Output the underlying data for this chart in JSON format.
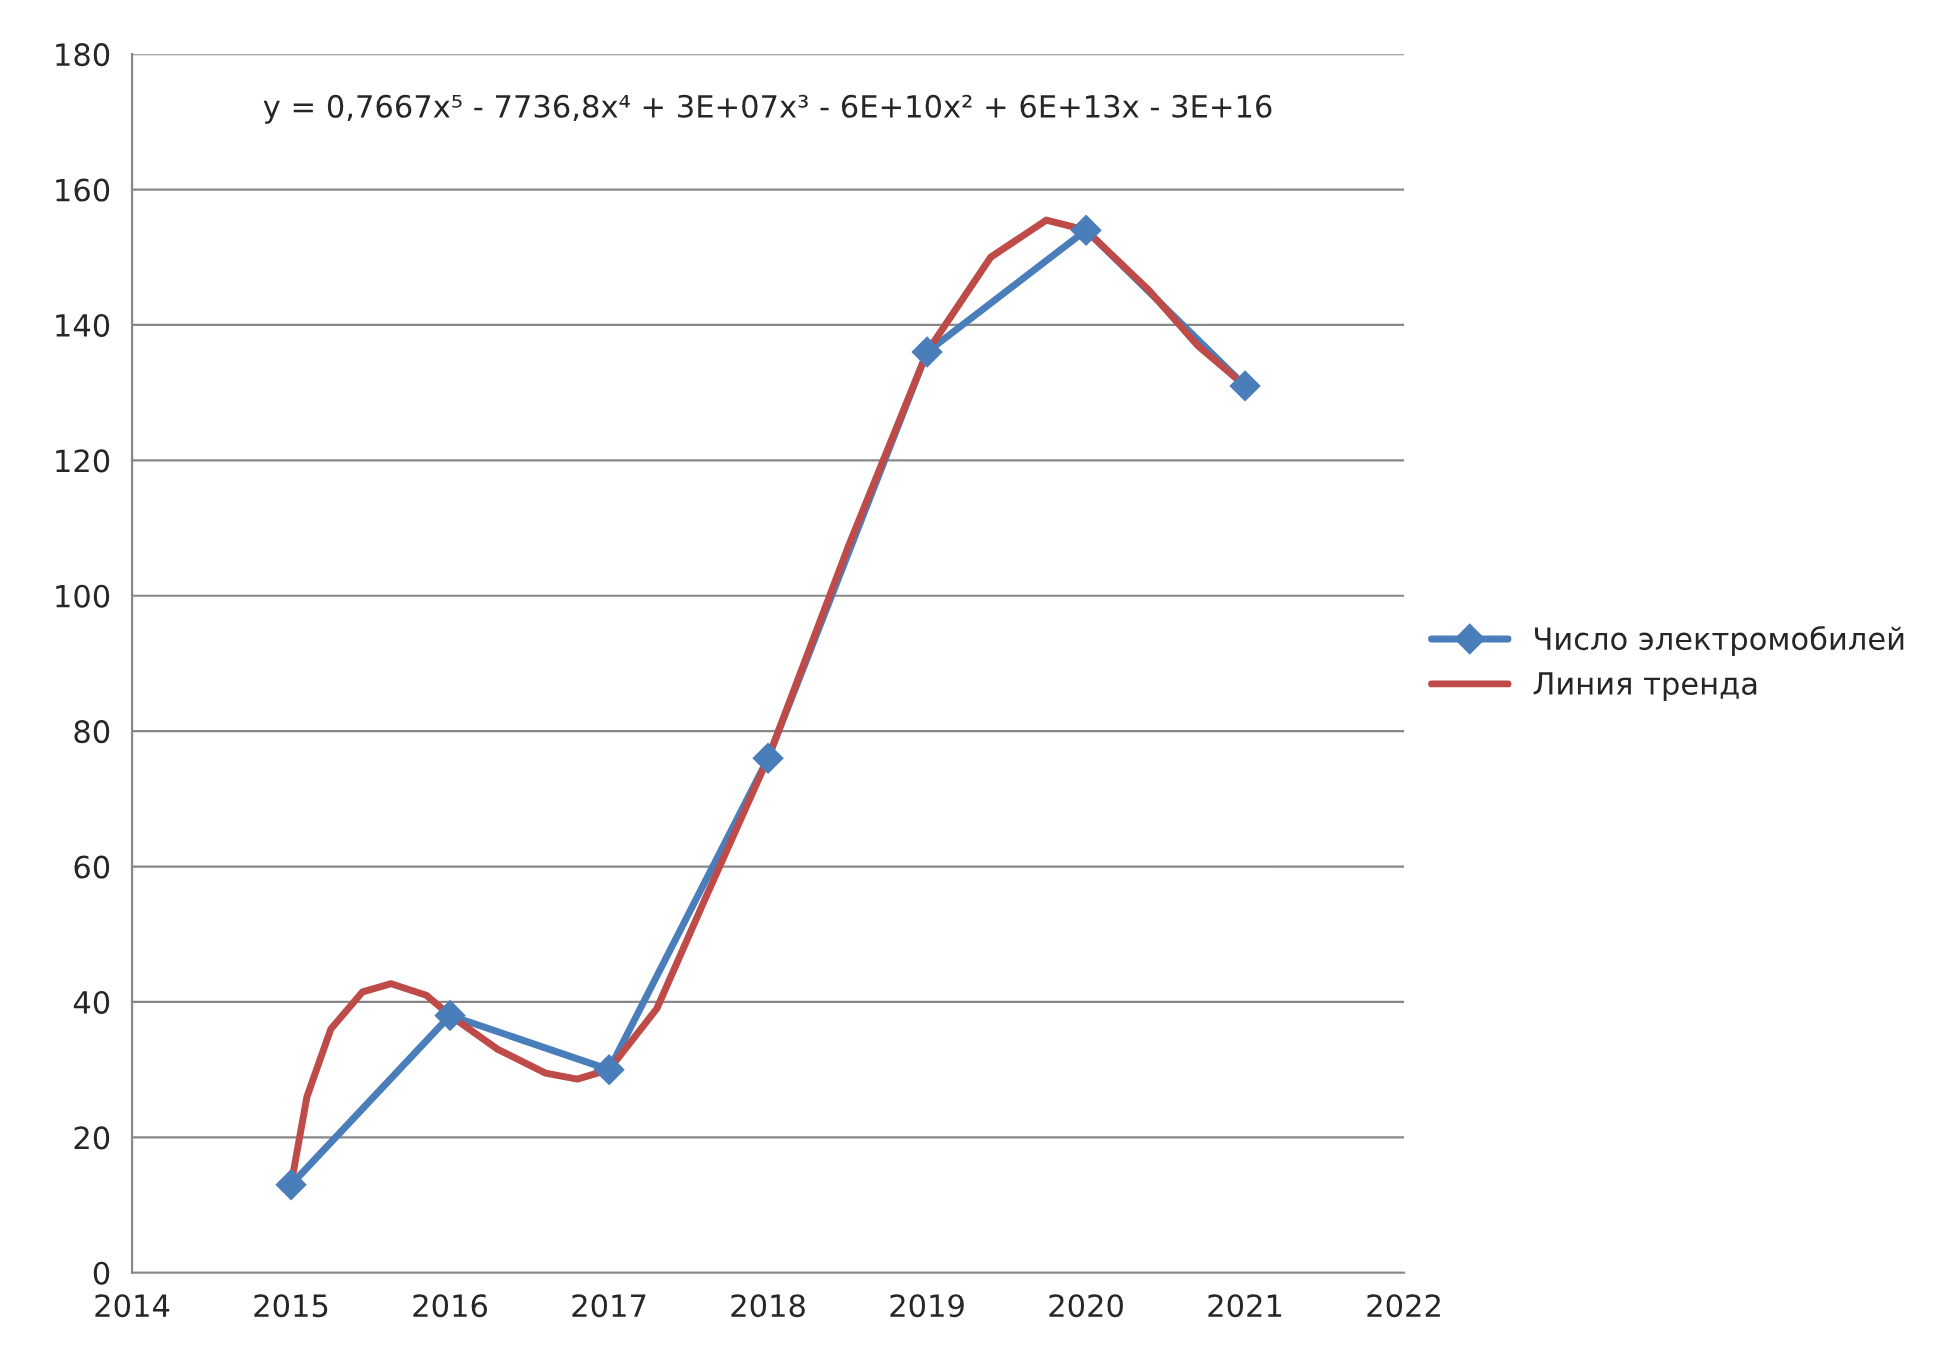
{
  "chart_data": {
    "type": "line",
    "annotations": [
      "y = 0,7667x⁵ - 7736,8x⁴ + 3E+07x³ - 6E+10x² + 6E+13x - 3E+16"
    ],
    "xlim": [
      2014,
      2022
    ],
    "xticks": [
      2014,
      2015,
      2016,
      2017,
      2018,
      2019,
      2020,
      2021,
      2022
    ],
    "ylim": [
      0,
      180
    ],
    "yticks": [
      0,
      20,
      40,
      60,
      80,
      100,
      120,
      140,
      160,
      180
    ],
    "grid": "y",
    "legend": "right",
    "marker": "diamond",
    "line_style": "solid",
    "series": [
      {
        "name": "Число электромобилей",
        "color": "#4a7ebb",
        "x": [
          2015,
          2016,
          2017,
          2018,
          2019,
          2020,
          2021
        ],
        "values": [
          13,
          38,
          30,
          76,
          136,
          154,
          131
        ]
      },
      {
        "name": "Линия тренда",
        "type": "line",
        "marker": "none",
        "color": "#be4b48",
        "x": [
          2015,
          2015.1,
          2015.25,
          2015.45,
          2015.63,
          2015.85,
          2016,
          2016.3,
          2016.6,
          2016.8,
          2017,
          2017.3,
          2017.6,
          2018,
          2018.5,
          2019,
          2019.4,
          2019.75,
          2020,
          2020.4,
          2020.7,
          2021
        ],
        "values": [
          13,
          26,
          36,
          41.5,
          42.7,
          41,
          38,
          33,
          29.5,
          28.6,
          30,
          39,
          55,
          76,
          107,
          136,
          150,
          155.5,
          154,
          145,
          137,
          131
        ]
      }
    ]
  }
}
